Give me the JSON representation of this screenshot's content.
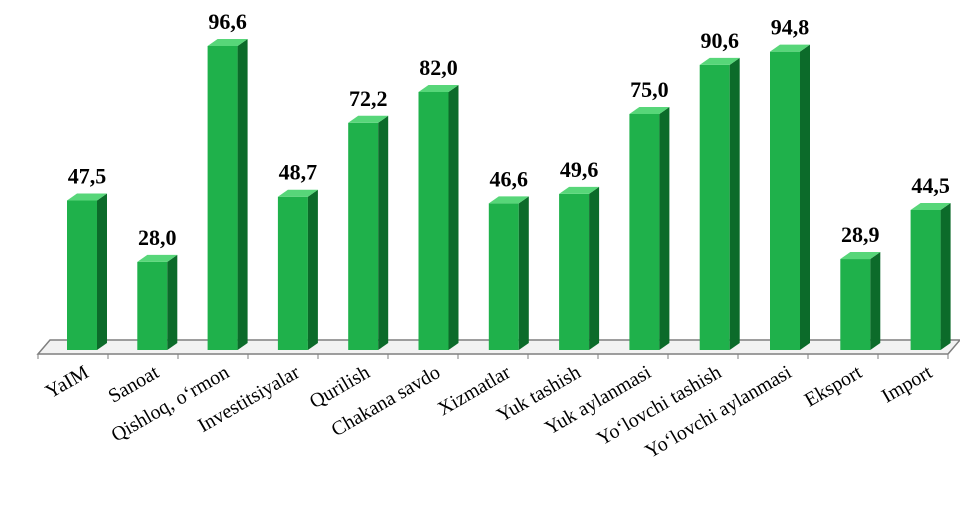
{
  "chart_data": {
    "type": "bar",
    "title": "",
    "xlabel": "",
    "ylabel": "",
    "ylim": [
      0,
      100
    ],
    "grid": false,
    "legend": "none",
    "style": "3d-column",
    "colors": {
      "front": "#1fb14b",
      "side": "#0c6b2a",
      "top": "#57d679",
      "floor": "#f2f2f2",
      "floor_edge": "#7f7f7f"
    },
    "categories": [
      "YaIM",
      "Sanoat",
      "Qishloq, o‘rmon",
      "Investitsiyalar",
      "Qurilish",
      "Chakana savdo",
      "Xizmatlar",
      "Yuk tashish",
      "Yuk aylanmasi",
      "Yo‘lovchi tashish",
      "Yo‘lovchi aylanmasi",
      "Eksport",
      "Import"
    ],
    "values": [
      47.5,
      28.0,
      96.6,
      48.7,
      72.2,
      82.0,
      46.6,
      49.6,
      75.0,
      90.6,
      94.8,
      28.9,
      44.5
    ],
    "data_labels": [
      "47,5",
      "28,0",
      "96,6",
      "48,7",
      "72,2",
      "82,0",
      "46,6",
      "49,6",
      "75,0",
      "90,6",
      "94,8",
      "28,9",
      "44,5"
    ]
  }
}
